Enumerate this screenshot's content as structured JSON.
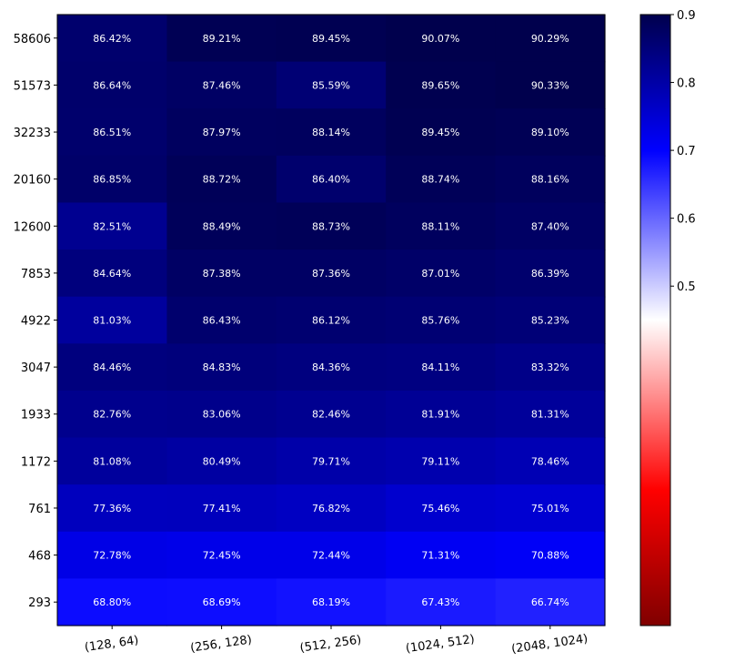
{
  "chart_data": {
    "type": "heatmap",
    "title": "",
    "xlabel": "",
    "ylabel": "",
    "x_categories": [
      "(128, 64)",
      "(256, 128)",
      "(512, 256)",
      "(1024, 512)",
      "(2048, 1024)"
    ],
    "y_categories": [
      "58606",
      "51573",
      "32233",
      "20160",
      "12600",
      "7853",
      "4922",
      "3047",
      "1933",
      "1172",
      "761",
      "468",
      "293"
    ],
    "values": [
      [
        86.42,
        89.21,
        89.45,
        90.07,
        90.29
      ],
      [
        86.64,
        87.46,
        85.59,
        89.65,
        90.33
      ],
      [
        86.51,
        87.97,
        88.14,
        89.45,
        89.1
      ],
      [
        86.85,
        88.72,
        86.4,
        88.74,
        88.16
      ],
      [
        82.51,
        88.49,
        88.73,
        88.11,
        87.4
      ],
      [
        84.64,
        87.38,
        87.36,
        87.01,
        86.39
      ],
      [
        81.03,
        86.43,
        86.12,
        85.76,
        85.23
      ],
      [
        84.46,
        84.83,
        84.36,
        84.11,
        83.32
      ],
      [
        82.76,
        83.06,
        82.46,
        81.91,
        81.31
      ],
      [
        81.08,
        80.49,
        79.71,
        79.11,
        78.46
      ],
      [
        77.36,
        77.41,
        76.82,
        75.46,
        75.01
      ],
      [
        72.78,
        72.45,
        72.44,
        71.31,
        70.88
      ],
      [
        68.8,
        68.69,
        68.19,
        67.43,
        66.74
      ]
    ],
    "cell_labels": [
      [
        "86.42%",
        "89.21%",
        "89.45%",
        "90.07%",
        "90.29%"
      ],
      [
        "86.64%",
        "87.46%",
        "85.59%",
        "89.65%",
        "90.33%"
      ],
      [
        "86.51%",
        "87.97%",
        "88.14%",
        "89.45%",
        "89.10%"
      ],
      [
        "86.85%",
        "88.72%",
        "86.40%",
        "88.74%",
        "88.16%"
      ],
      [
        "82.51%",
        "88.49%",
        "88.73%",
        "88.11%",
        "87.40%"
      ],
      [
        "84.64%",
        "87.38%",
        "87.36%",
        "87.01%",
        "86.39%"
      ],
      [
        "81.03%",
        "86.43%",
        "86.12%",
        "85.76%",
        "85.23%"
      ],
      [
        "84.46%",
        "84.83%",
        "84.36%",
        "84.11%",
        "83.32%"
      ],
      [
        "82.76%",
        "83.06%",
        "82.46%",
        "81.91%",
        "81.31%"
      ],
      [
        "81.08%",
        "80.49%",
        "79.71%",
        "79.11%",
        "78.46%"
      ],
      [
        "77.36%",
        "77.41%",
        "76.82%",
        "75.46%",
        "75.01%"
      ],
      [
        "72.78%",
        "72.45%",
        "72.44%",
        "71.31%",
        "70.88%"
      ],
      [
        "68.80%",
        "68.69%",
        "68.19%",
        "67.43%",
        "66.74%"
      ]
    ],
    "colormap": "seismic_r",
    "colorbar": {
      "vmin": 0.0,
      "vmax": 0.9,
      "ticks": [
        0.5,
        0.6,
        0.7,
        0.8,
        0.9
      ],
      "tick_labels": [
        "0.5",
        "0.6",
        "0.7",
        "0.8",
        "0.9"
      ],
      "placement": "right"
    },
    "grid": false
  }
}
